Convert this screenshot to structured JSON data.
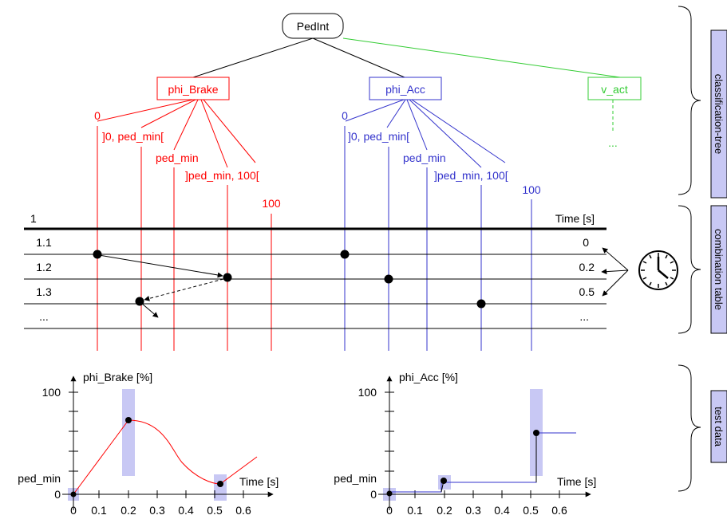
{
  "colors": {
    "red": "#ff0000",
    "blue": "#3333cc",
    "green": "#33cc33",
    "black": "#000000",
    "band": "#c8c8f4",
    "sidebox": "#c8c8f4"
  },
  "tree": {
    "root": "PedInt",
    "classifications": {
      "brake": "phi_Brake",
      "acc": "phi_Acc",
      "vact": "v_act"
    },
    "brake_classes": [
      "0",
      "]0, ped_min[",
      "ped_min",
      "]ped_min, 100[",
      "100"
    ],
    "acc_classes": [
      "0",
      "]0, ped_min[",
      "ped_min",
      "]ped_min, 100[",
      "100"
    ],
    "vact_more": "..."
  },
  "table": {
    "header_left": "1",
    "header_right": "Time [s]",
    "rows": [
      {
        "id": "1.1",
        "time": "0"
      },
      {
        "id": "1.2",
        "time": "0.2"
      },
      {
        "id": "1.3",
        "time": "0.5"
      },
      {
        "id": "...",
        "time": "..."
      }
    ]
  },
  "side_labels": {
    "tree": "classification-tree",
    "table": "combination table",
    "data": "test data"
  },
  "plots": {
    "brake": {
      "ylabel": "phi_Brake [%]",
      "xlabel": "Time [s]",
      "y_top": "100",
      "y_mid": "ped_min",
      "y_zero": "0"
    },
    "acc": {
      "ylabel": "phi_Acc [%]",
      "xlabel": "Time [s]",
      "y_top": "100",
      "y_mid": "ped_min",
      "y_zero": "0"
    },
    "xticks": [
      "0",
      "0.1",
      "0.2",
      "0.3",
      "0.4",
      "0.5",
      "0.6"
    ]
  }
}
